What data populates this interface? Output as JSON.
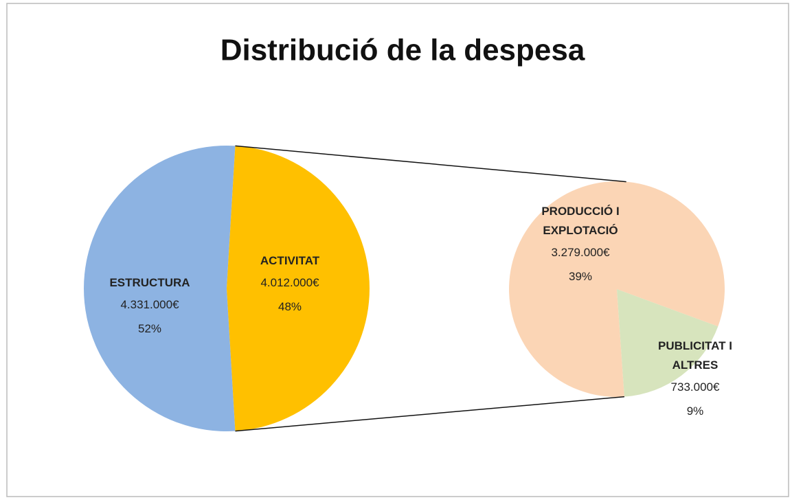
{
  "chart_data": {
    "type": "pie-of-pie",
    "title": "Distribució de la despesa",
    "main": {
      "categories": [
        "ESTRUCTURA",
        "ACTIVITAT"
      ],
      "values": [
        4331000,
        4012000
      ],
      "value_labels": [
        "4.331.000€",
        "4.012.000€"
      ],
      "percent_labels": [
        "52%",
        "48%"
      ],
      "colors": [
        "#8db3e2",
        "#ffc000"
      ]
    },
    "secondary": {
      "categories": [
        "PRODUCCIÓ I EXPLOTACIÓ",
        "PUBLICITAT I ALTRES"
      ],
      "values": [
        3279000,
        733000
      ],
      "value_labels": [
        "3.279.000€",
        "733.000€"
      ],
      "percent_labels": [
        "39%",
        "9%"
      ],
      "colors": [
        "#fbd5b5",
        "#d7e4bd"
      ]
    }
  }
}
